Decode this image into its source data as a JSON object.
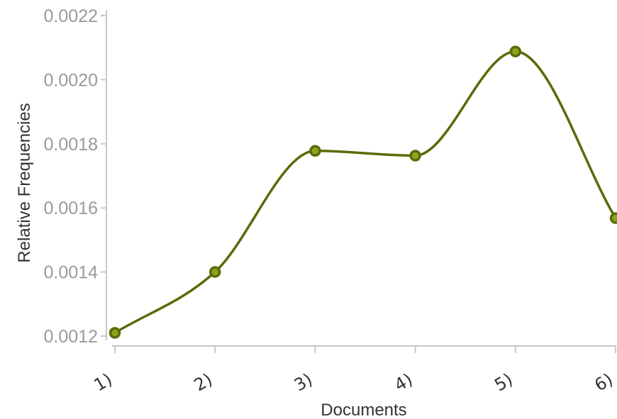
{
  "chart_data": {
    "type": "line",
    "title": "",
    "xlabel": "Documents",
    "ylabel": "Relative Frequencies",
    "categories": [
      "1)",
      "2)",
      "3)",
      "4)",
      "5)",
      "6)"
    ],
    "series": [
      {
        "values": [
          0.00121,
          0.0014,
          0.001778,
          0.001763,
          0.002088,
          0.001568
        ]
      }
    ],
    "ylim": [
      0.0012,
      0.0022
    ],
    "yticks": [
      "0.0012",
      "0.0014",
      "0.0016",
      "0.0018",
      "0.0020",
      "0.0022"
    ],
    "grid": false,
    "legend": "none",
    "curve": "smooth",
    "colors": {
      "line": "#5a6b0a",
      "marker_fill": "#8aa61c",
      "marker_stroke": "#5a6b0a",
      "axis": "#c8c8c8",
      "tick_text": "#9a9a9a",
      "label_text": "#333333"
    }
  }
}
